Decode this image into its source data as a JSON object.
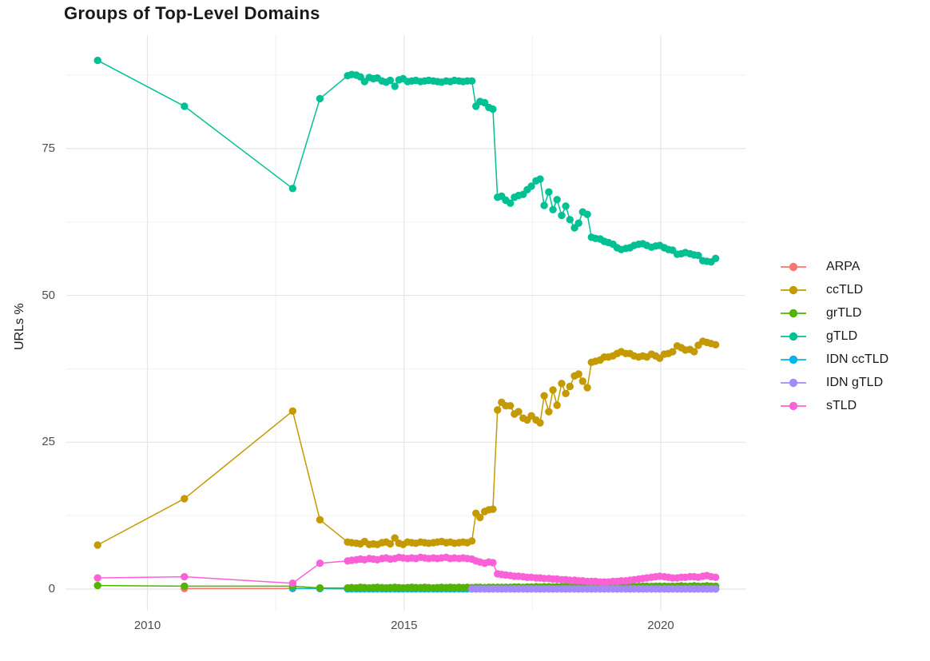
{
  "chart_data": {
    "type": "line",
    "title": "Groups of Top-Level Domains",
    "xlabel": "",
    "ylabel": "URLs %",
    "legend_position": "right",
    "grid": true,
    "xlim": [
      2008.42,
      2021.65
    ],
    "ylim": [
      -3.67,
      94.3
    ],
    "x_ticks": [
      2010,
      2015,
      2020
    ],
    "x_tick_labels": [
      "2010",
      "2015",
      "2020"
    ],
    "y_ticks": [
      0,
      25,
      50,
      75
    ],
    "y_tick_labels": [
      "0",
      "25",
      "50",
      "75"
    ],
    "x_minor_gridlines": [
      2012.5,
      2017.5
    ],
    "y_minor_gridlines": [
      12.5,
      37.5,
      62.5,
      87.5
    ],
    "x": [
      2009.03,
      2010.72,
      2012.83,
      2013.36,
      2013.9,
      2013.98,
      2014.07,
      2014.15,
      2014.23,
      2014.32,
      2014.4,
      2014.48,
      2014.57,
      2014.65,
      2014.73,
      2014.82,
      2014.9,
      2014.98,
      2015.07,
      2015.15,
      2015.23,
      2015.32,
      2015.4,
      2015.48,
      2015.57,
      2015.65,
      2015.73,
      2015.82,
      2015.9,
      2015.98,
      2016.07,
      2016.15,
      2016.23,
      2016.32,
      2016.4,
      2016.48,
      2016.57,
      2016.65,
      2016.73,
      2016.82,
      2016.9,
      2016.98,
      2017.07,
      2017.15,
      2017.23,
      2017.32,
      2017.4,
      2017.48,
      2017.57,
      2017.65,
      2017.73,
      2017.82,
      2017.9,
      2017.98,
      2018.07,
      2018.15,
      2018.23,
      2018.32,
      2018.4,
      2018.48,
      2018.57,
      2018.65,
      2018.73,
      2018.82,
      2018.9,
      2018.98,
      2019.07,
      2019.15,
      2019.23,
      2019.32,
      2019.4,
      2019.48,
      2019.57,
      2019.65,
      2019.73,
      2019.82,
      2019.9,
      2019.98,
      2020.07,
      2020.15,
      2020.23,
      2020.32,
      2020.4,
      2020.48,
      2020.57,
      2020.65,
      2020.73,
      2020.82,
      2020.9,
      2020.98,
      2021.07
    ],
    "series": [
      {
        "name": "ARPA",
        "color": "#F8766D",
        "values": [
          null,
          0.1,
          0.1,
          0.08,
          0.05,
          0.05,
          0.05,
          0.05,
          0.05,
          0.05,
          0.05,
          0.05,
          0.05,
          0.05,
          0.05,
          0.05,
          0.05,
          0.05,
          0.05,
          0.05,
          0.05,
          0.05,
          0.05,
          0.05,
          0.05,
          0.05,
          0.05,
          0.05,
          0.05,
          0.05,
          0.05,
          0.05,
          0.05,
          0.05,
          0.05,
          0.05,
          0.05,
          0.05,
          0.05,
          0.05,
          0.05,
          0.05,
          0.05,
          0.05,
          0.05,
          0.05,
          0.05,
          0.05,
          0.05,
          0.05,
          0.05,
          0.05,
          0.05,
          0.05,
          0.05,
          0.05,
          0.05,
          0.05,
          0.05,
          0.05,
          0.05,
          0.05,
          0.05,
          0.05,
          0.05,
          0.05,
          0.05,
          0.05,
          0.05,
          0.05,
          0.05,
          0.05,
          0.05,
          0.05,
          0.05,
          0.05,
          0.05,
          0.05,
          0.05,
          0.05,
          0.05,
          0.05,
          0.05,
          0.05,
          0.05,
          0.05,
          0.05,
          0.05,
          0.05,
          0.05,
          0.05
        ]
      },
      {
        "name": "ccTLD",
        "color": "#C49A00",
        "values": [
          7.5,
          15.4,
          30.3,
          11.8,
          8.0,
          7.9,
          7.8,
          7.7,
          8.1,
          7.6,
          7.7,
          7.6,
          7.9,
          8.0,
          7.7,
          8.7,
          7.8,
          7.6,
          8.0,
          7.9,
          7.8,
          8.0,
          7.9,
          7.8,
          7.9,
          8.0,
          8.1,
          7.9,
          8.0,
          7.8,
          7.9,
          8.0,
          7.9,
          8.2,
          12.9,
          12.2,
          13.2,
          13.5,
          13.6,
          30.5,
          31.8,
          31.2,
          31.2,
          29.8,
          30.2,
          29.1,
          28.8,
          29.5,
          28.8,
          28.3,
          32.9,
          30.2,
          33.9,
          31.3,
          35.0,
          33.3,
          34.5,
          36.3,
          36.6,
          35.4,
          34.3,
          38.6,
          38.8,
          39.0,
          39.5,
          39.5,
          39.7,
          40.1,
          40.4,
          40.1,
          40.1,
          39.7,
          39.5,
          39.7,
          39.5,
          40.0,
          39.7,
          39.3,
          40.0,
          40.1,
          40.4,
          41.4,
          41.1,
          40.7,
          40.8,
          40.4,
          41.5,
          42.2,
          42.0,
          41.8,
          41.6
        ]
      },
      {
        "name": "grTLD",
        "color": "#53B400",
        "values": [
          0.6,
          0.5,
          0.5,
          0.2,
          0.2,
          0.25,
          0.2,
          0.3,
          0.25,
          0.2,
          0.25,
          0.3,
          0.25,
          0.2,
          0.25,
          0.3,
          0.25,
          0.2,
          0.25,
          0.3,
          0.25,
          0.25,
          0.3,
          0.25,
          0.2,
          0.25,
          0.3,
          0.25,
          0.3,
          0.25,
          0.3,
          0.25,
          0.3,
          0.25,
          0.3,
          0.3,
          0.25,
          0.3,
          0.3,
          0.3,
          0.3,
          0.3,
          0.3,
          0.35,
          0.35,
          0.3,
          0.35,
          0.35,
          0.4,
          0.35,
          0.4,
          0.4,
          0.35,
          0.4,
          0.4,
          0.45,
          0.4,
          0.4,
          0.45,
          0.4,
          0.45,
          0.45,
          0.4,
          0.45,
          0.45,
          0.5,
          0.45,
          0.45,
          0.5,
          0.45,
          0.5,
          0.5,
          0.45,
          0.5,
          0.5,
          0.45,
          0.5,
          0.5,
          0.5,
          0.45,
          0.5,
          0.5,
          0.55,
          0.5,
          0.5,
          0.55,
          0.5,
          0.5,
          0.55,
          0.5,
          0.5
        ]
      },
      {
        "name": "gTLD",
        "color": "#00C094",
        "values": [
          90.0,
          82.2,
          68.2,
          83.5,
          87.4,
          87.6,
          87.5,
          87.2,
          86.4,
          87.1,
          86.9,
          87.0,
          86.5,
          86.3,
          86.6,
          85.6,
          86.7,
          86.9,
          86.4,
          86.5,
          86.6,
          86.4,
          86.5,
          86.6,
          86.5,
          86.4,
          86.3,
          86.5,
          86.4,
          86.6,
          86.5,
          86.4,
          86.5,
          86.5,
          82.2,
          83.0,
          82.8,
          82.0,
          81.7,
          66.7,
          66.9,
          66.2,
          65.7,
          66.7,
          67.0,
          67.2,
          68.0,
          68.6,
          69.5,
          69.8,
          65.3,
          67.6,
          64.6,
          66.3,
          63.6,
          65.2,
          62.9,
          61.5,
          62.3,
          64.2,
          63.8,
          59.9,
          59.7,
          59.6,
          59.2,
          59.0,
          58.7,
          58.1,
          57.8,
          58.0,
          58.1,
          58.5,
          58.7,
          58.8,
          58.5,
          58.2,
          58.4,
          58.5,
          58.1,
          57.8,
          57.7,
          57.0,
          57.1,
          57.3,
          57.1,
          56.9,
          56.8,
          55.9,
          55.8,
          55.7,
          56.3
        ]
      },
      {
        "name": "IDN ccTLD",
        "color": "#00B6EB",
        "values": [
          null,
          null,
          0.12,
          0.1,
          0.05,
          0.05,
          0.05,
          0.05,
          0.05,
          0.05,
          0.05,
          0.05,
          0.05,
          0.05,
          0.05,
          0.05,
          0.05,
          0.05,
          0.05,
          0.05,
          0.05,
          0.05,
          0.05,
          0.05,
          0.05,
          0.05,
          0.05,
          0.05,
          0.05,
          0.05,
          0.05,
          0.05,
          0.05,
          0.05,
          0.05,
          0.05,
          0.05,
          0.05,
          0.05,
          0.05,
          0.05,
          0.05,
          0.05,
          0.05,
          0.05,
          0.05,
          0.05,
          0.05,
          0.05,
          0.05,
          0.05,
          0.05,
          0.05,
          0.05,
          0.05,
          0.05,
          0.05,
          0.05,
          0.05,
          0.05,
          0.05,
          0.05,
          0.05,
          0.05,
          0.05,
          0.05,
          0.05,
          0.05,
          0.05,
          0.05,
          0.05,
          0.05,
          0.05,
          0.05,
          0.05,
          0.05,
          0.05,
          0.05,
          0.05,
          0.05,
          0.05,
          0.05,
          0.05,
          0.05,
          0.05,
          0.05,
          0.05,
          0.05,
          0.05,
          0.05,
          0.05
        ]
      },
      {
        "name": "IDN gTLD",
        "color": "#A58AFF",
        "values": [
          null,
          null,
          null,
          null,
          null,
          null,
          null,
          null,
          null,
          null,
          null,
          null,
          null,
          null,
          null,
          null,
          null,
          null,
          null,
          null,
          null,
          null,
          null,
          null,
          null,
          null,
          null,
          null,
          null,
          null,
          null,
          null,
          null,
          0.03,
          0.03,
          0.03,
          0.03,
          0.03,
          0.03,
          0.03,
          0.03,
          0.03,
          0.03,
          0.03,
          0.03,
          0.03,
          0.03,
          0.03,
          0.03,
          0.03,
          0.03,
          0.03,
          0.03,
          0.03,
          0.03,
          0.03,
          0.03,
          0.03,
          0.03,
          0.03,
          0.03,
          0.03,
          0.03,
          0.03,
          0.03,
          0.03,
          0.03,
          0.03,
          0.03,
          0.03,
          0.03,
          0.03,
          0.03,
          0.03,
          0.03,
          0.03,
          0.03,
          0.03,
          0.03,
          0.03,
          0.03,
          0.03,
          0.03,
          0.03,
          0.03,
          0.03,
          0.03,
          0.03,
          0.03,
          0.03,
          0.03
        ]
      },
      {
        "name": "sTLD",
        "color": "#FB61D7",
        "values": [
          1.9,
          2.1,
          1.0,
          4.4,
          4.8,
          4.9,
          5.0,
          5.1,
          5.0,
          5.2,
          5.1,
          5.0,
          5.2,
          5.3,
          5.1,
          5.2,
          5.4,
          5.3,
          5.2,
          5.3,
          5.2,
          5.4,
          5.3,
          5.2,
          5.3,
          5.2,
          5.3,
          5.4,
          5.2,
          5.3,
          5.2,
          5.3,
          5.2,
          5.1,
          4.8,
          4.6,
          4.4,
          4.6,
          4.5,
          2.6,
          2.5,
          2.4,
          2.3,
          2.2,
          2.2,
          2.1,
          2.0,
          2.0,
          1.9,
          1.9,
          1.8,
          1.8,
          1.7,
          1.7,
          1.6,
          1.6,
          1.5,
          1.5,
          1.4,
          1.4,
          1.3,
          1.3,
          1.3,
          1.2,
          1.2,
          1.2,
          1.3,
          1.3,
          1.4,
          1.4,
          1.5,
          1.6,
          1.7,
          1.8,
          1.9,
          2.0,
          2.1,
          2.2,
          2.1,
          2.0,
          1.9,
          1.9,
          2.0,
          2.0,
          2.1,
          2.1,
          2.0,
          2.2,
          2.3,
          2.1,
          2.0
        ]
      }
    ],
    "draw_order": [
      0,
      4,
      2,
      5,
      6,
      1,
      3
    ],
    "colors": {
      "major_grid": "#e4e4e4",
      "minor_grid": "#f1f1f1",
      "tick_text": "#4d4d4d",
      "text": "#191919",
      "background": "#ffffff"
    }
  }
}
